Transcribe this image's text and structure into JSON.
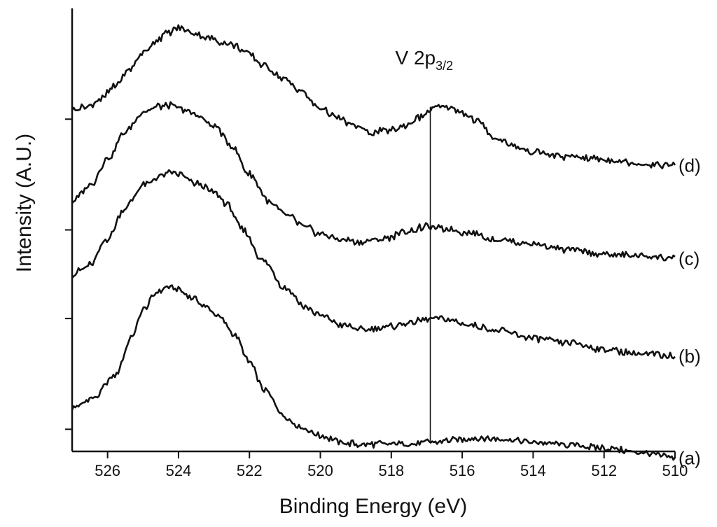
{
  "chart_data": {
    "type": "line",
    "title": "",
    "xlabel": "Binding Energy (eV)",
    "ylabel": "Intensity (A.U.)",
    "xlim": [
      527,
      510
    ],
    "ylim": [
      0,
      100
    ],
    "x_reversed": true,
    "x_ticks": [
      526,
      524,
      522,
      520,
      518,
      516,
      514,
      512,
      510
    ],
    "x_tick_labels": [
      "526",
      "524",
      "522",
      "520",
      "518",
      "516",
      "514",
      "512",
      "510"
    ],
    "y_tick_values": [
      5,
      30,
      50,
      75
    ],
    "y_tick_labels_shown": false,
    "grid": false,
    "annotation": {
      "main": "V 2p",
      "subscript": "3/2",
      "x": 516.9,
      "line_from_y": 2.3,
      "line_to_y": 77.8
    },
    "series": [
      {
        "name": "(a)",
        "label": "(a)",
        "points": [
          [
            527.0,
            9.8
          ],
          [
            526.4,
            12.0
          ],
          [
            525.8,
            17.0
          ],
          [
            525.3,
            26.0
          ],
          [
            525.0,
            32.0
          ],
          [
            524.6,
            36.0
          ],
          [
            524.3,
            37.0
          ],
          [
            524.0,
            36.5
          ],
          [
            523.6,
            34.5
          ],
          [
            523.2,
            32.5
          ],
          [
            522.8,
            30.0
          ],
          [
            522.4,
            26.0
          ],
          [
            522.0,
            20.0
          ],
          [
            521.6,
            14.0
          ],
          [
            521.0,
            8.0
          ],
          [
            520.6,
            5.5
          ],
          [
            520.0,
            3.5
          ],
          [
            519.4,
            2.0
          ],
          [
            518.8,
            1.5
          ],
          [
            518.0,
            1.8
          ],
          [
            517.2,
            1.8
          ],
          [
            516.8,
            2.2
          ],
          [
            516.4,
            2.5
          ],
          [
            515.6,
            3.0
          ],
          [
            515.0,
            2.8
          ],
          [
            514.0,
            2.0
          ],
          [
            513.0,
            1.5
          ],
          [
            512.0,
            0.8
          ],
          [
            511.0,
            -0.2
          ],
          [
            510.0,
            -1.5
          ]
        ]
      },
      {
        "name": "(b)",
        "label": "(b)",
        "points": [
          [
            527.0,
            40.0
          ],
          [
            526.5,
            42.0
          ],
          [
            526.0,
            48.0
          ],
          [
            525.5,
            55.0
          ],
          [
            525.0,
            60.0
          ],
          [
            524.5,
            62.0
          ],
          [
            524.2,
            63.0
          ],
          [
            524.0,
            62.5
          ],
          [
            523.5,
            60.5
          ],
          [
            523.0,
            58.5
          ],
          [
            522.6,
            55.5
          ],
          [
            522.2,
            50.0
          ],
          [
            521.6,
            43.0
          ],
          [
            521.0,
            37.0
          ],
          [
            520.4,
            32.5
          ],
          [
            520.0,
            30.5
          ],
          [
            519.4,
            28.5
          ],
          [
            518.8,
            27.5
          ],
          [
            518.0,
            28.2
          ],
          [
            517.4,
            29.2
          ],
          [
            516.8,
            30.0
          ],
          [
            516.4,
            29.8
          ],
          [
            515.8,
            28.5
          ],
          [
            515.0,
            27.2
          ],
          [
            514.0,
            25.5
          ],
          [
            513.0,
            24.5
          ],
          [
            512.0,
            23.0
          ],
          [
            511.0,
            22.0
          ],
          [
            510.0,
            21.5
          ]
        ]
      },
      {
        "name": "(c)",
        "label": "(c)",
        "points": [
          [
            527.0,
            56.5
          ],
          [
            526.5,
            60.0
          ],
          [
            526.0,
            66.0
          ],
          [
            525.5,
            72.0
          ],
          [
            525.0,
            76.5
          ],
          [
            524.6,
            77.8
          ],
          [
            524.3,
            78.2
          ],
          [
            524.0,
            77.5
          ],
          [
            523.5,
            76.0
          ],
          [
            523.0,
            73.5
          ],
          [
            522.5,
            69.0
          ],
          [
            522.0,
            62.5
          ],
          [
            521.4,
            56.0
          ],
          [
            521.0,
            53.5
          ],
          [
            520.4,
            50.5
          ],
          [
            520.0,
            49.0
          ],
          [
            519.4,
            47.7
          ],
          [
            518.8,
            47.3
          ],
          [
            518.2,
            48.0
          ],
          [
            517.6,
            49.5
          ],
          [
            517.0,
            50.7
          ],
          [
            516.5,
            50.2
          ],
          [
            515.8,
            49.3
          ],
          [
            515.0,
            47.8
          ],
          [
            514.0,
            46.8
          ],
          [
            513.0,
            45.5
          ],
          [
            512.0,
            44.5
          ],
          [
            511.0,
            44.2
          ],
          [
            510.0,
            43.5
          ]
        ]
      },
      {
        "name": "(d)",
        "label": "(d)",
        "points": [
          [
            527.0,
            77.2
          ],
          [
            526.6,
            77.8
          ],
          [
            526.2,
            79.5
          ],
          [
            525.8,
            82.5
          ],
          [
            525.4,
            86.0
          ],
          [
            525.0,
            90.0
          ],
          [
            524.6,
            93.0
          ],
          [
            524.3,
            94.5
          ],
          [
            524.0,
            95.5
          ],
          [
            523.6,
            94.5
          ],
          [
            523.2,
            93.5
          ],
          [
            522.8,
            92.5
          ],
          [
            522.4,
            91.5
          ],
          [
            522.0,
            89.5
          ],
          [
            521.6,
            87.0
          ],
          [
            521.0,
            84.0
          ],
          [
            520.6,
            81.5
          ],
          [
            520.0,
            77.5
          ],
          [
            519.6,
            75.5
          ],
          [
            519.0,
            73.5
          ],
          [
            518.6,
            72.0
          ],
          [
            518.0,
            72.5
          ],
          [
            517.6,
            73.5
          ],
          [
            517.2,
            75.5
          ],
          [
            516.8,
            77.5
          ],
          [
            516.4,
            77.8
          ],
          [
            516.0,
            76.5
          ],
          [
            515.6,
            74.5
          ],
          [
            515.0,
            70.5
          ],
          [
            514.4,
            68.5
          ],
          [
            514.0,
            67.5
          ],
          [
            513.0,
            66.5
          ],
          [
            512.0,
            66.0
          ],
          [
            511.0,
            65.0
          ],
          [
            510.0,
            64.5
          ]
        ]
      }
    ]
  }
}
